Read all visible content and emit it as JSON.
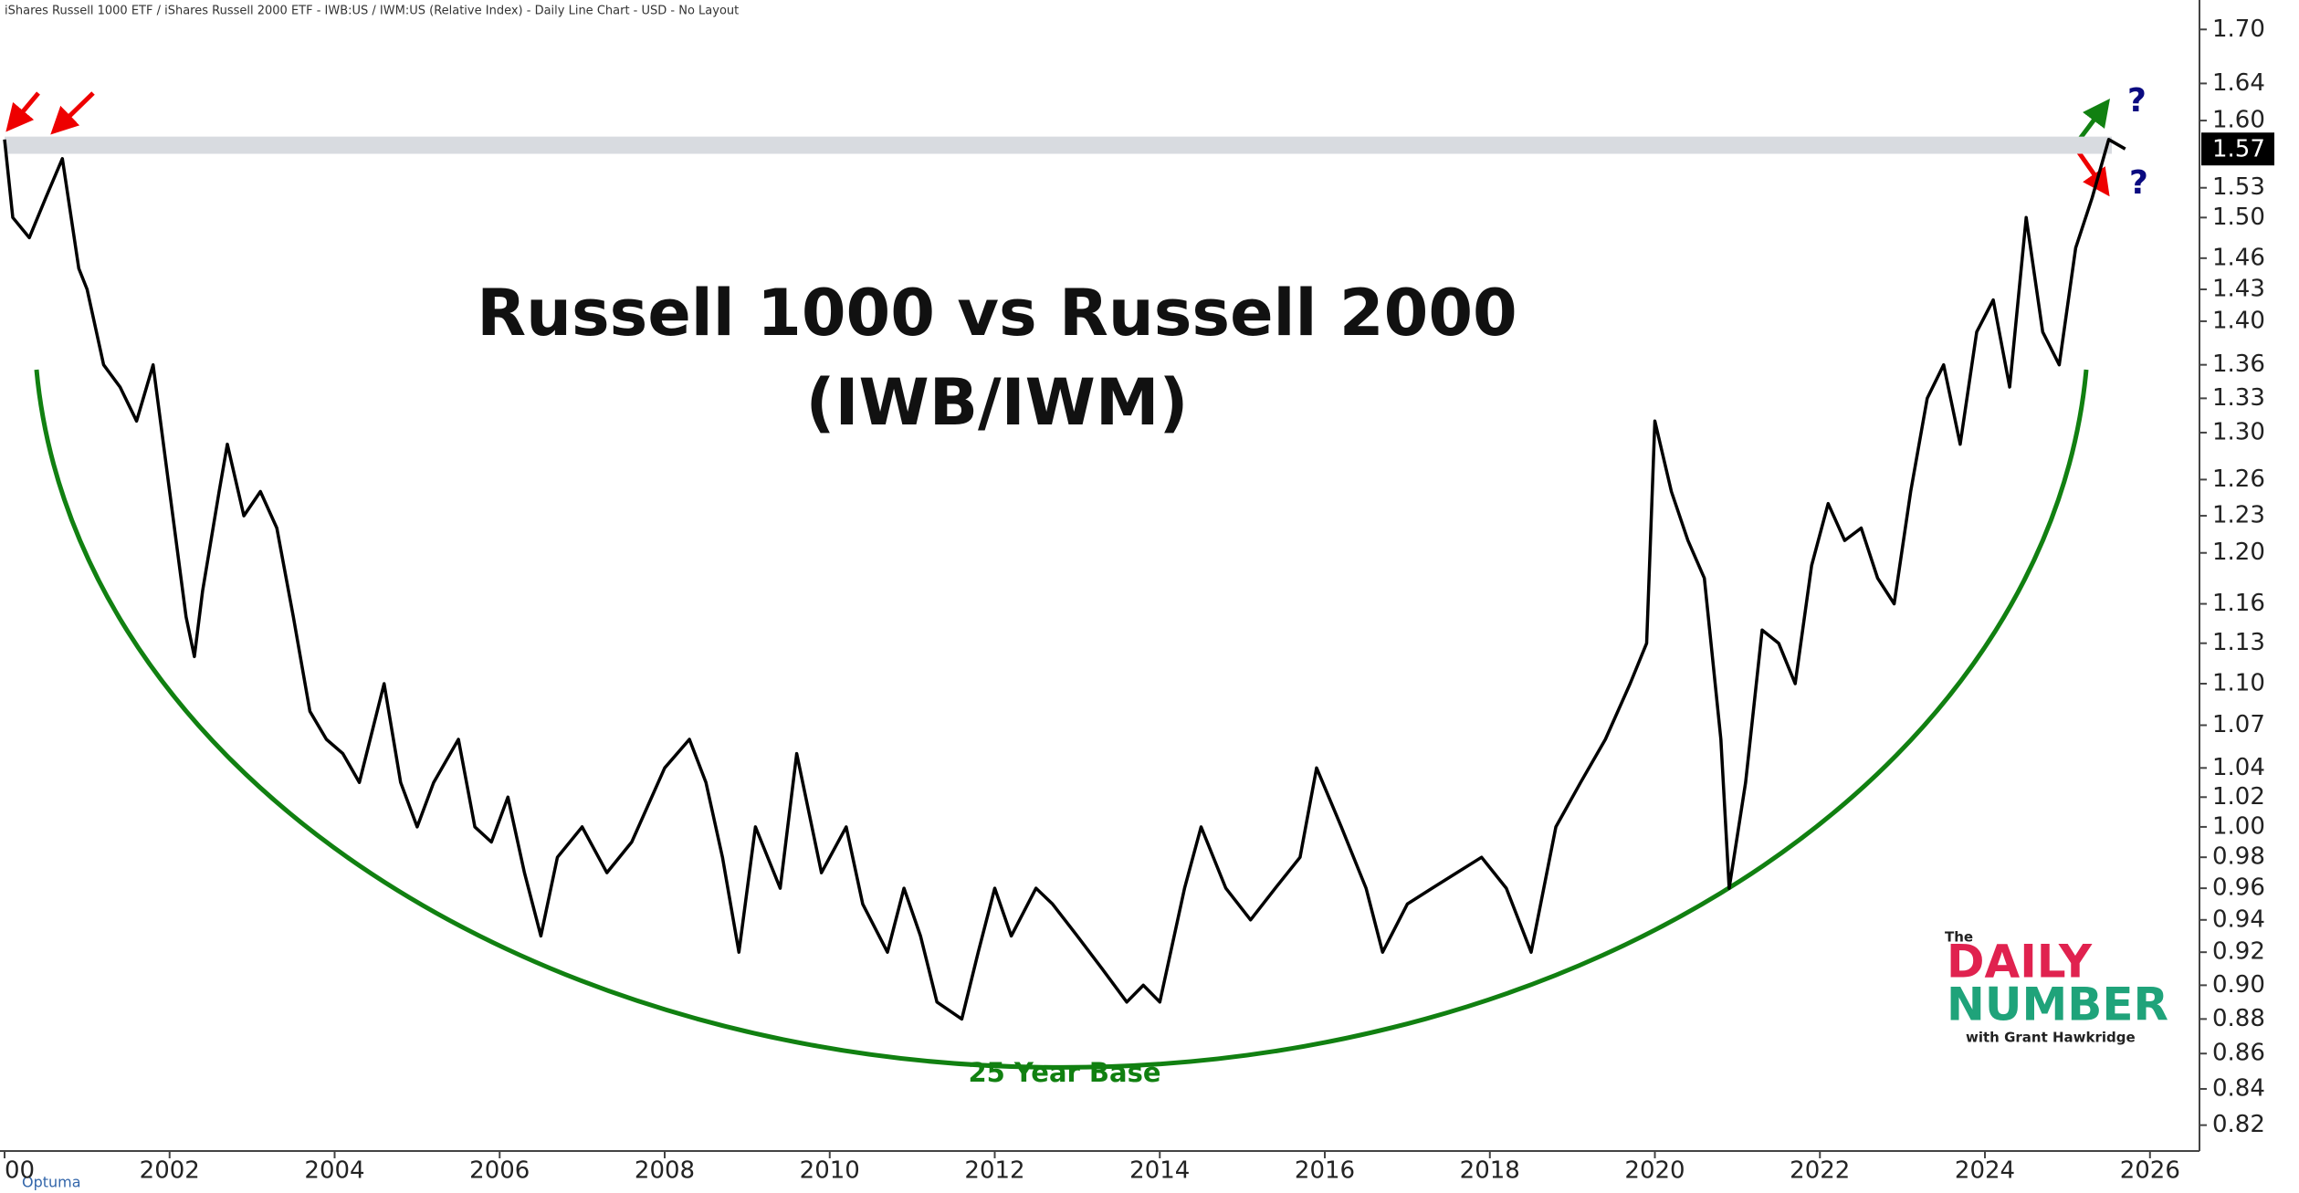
{
  "header": "iShares Russell 1000 ETF / iShares Russell 2000 ETF - IWB:US / IWM:US (Relative Index) - Daily Line Chart - USD - No Layout",
  "chart_data": {
    "type": "line",
    "title": "Russell 1000 vs Russell 2000",
    "subtitle": "(IWB/IWM)",
    "annotation": "25 Year Base",
    "question_marks": [
      "?",
      "?"
    ],
    "color": "#000000",
    "log_scale": true,
    "grid": false,
    "x": [
      2000.0,
      2000.1,
      2000.3,
      2000.5,
      2000.7,
      2000.9,
      2001.0,
      2001.2,
      2001.4,
      2001.6,
      2001.8,
      2002.0,
      2002.2,
      2002.3,
      2002.4,
      2002.6,
      2002.7,
      2002.9,
      2003.1,
      2003.3,
      2003.5,
      2003.7,
      2003.9,
      2004.1,
      2004.3,
      2004.6,
      2004.8,
      2005.0,
      2005.2,
      2005.5,
      2005.7,
      2005.9,
      2006.1,
      2006.3,
      2006.5,
      2006.7,
      2007.0,
      2007.3,
      2007.6,
      2008.0,
      2008.3,
      2008.5,
      2008.7,
      2008.9,
      2009.1,
      2009.4,
      2009.6,
      2009.9,
      2010.2,
      2010.4,
      2010.7,
      2010.9,
      2011.1,
      2011.3,
      2011.6,
      2011.8,
      2012.0,
      2012.2,
      2012.5,
      2012.7,
      2013.0,
      2013.3,
      2013.6,
      2013.8,
      2014.0,
      2014.3,
      2014.5,
      2014.8,
      2015.1,
      2015.4,
      2015.7,
      2015.9,
      2016.2,
      2016.5,
      2016.7,
      2017.0,
      2017.3,
      2017.6,
      2017.9,
      2018.2,
      2018.5,
      2018.8,
      2019.1,
      2019.4,
      2019.7,
      2019.9,
      2020.0,
      2020.2,
      2020.4,
      2020.6,
      2020.8,
      2020.9,
      2021.1,
      2021.3,
      2021.5,
      2021.7,
      2021.9,
      2022.1,
      2022.3,
      2022.5,
      2022.7,
      2022.9,
      2023.1,
      2023.3,
      2023.5,
      2023.7,
      2023.9,
      2024.1,
      2024.3,
      2024.5,
      2024.7,
      2024.9,
      2025.1,
      2025.3,
      2025.5,
      2025.7
    ],
    "values": [
      1.58,
      1.5,
      1.48,
      1.52,
      1.56,
      1.45,
      1.43,
      1.36,
      1.34,
      1.31,
      1.36,
      1.25,
      1.15,
      1.12,
      1.17,
      1.25,
      1.29,
      1.23,
      1.25,
      1.22,
      1.15,
      1.08,
      1.06,
      1.05,
      1.03,
      1.1,
      1.03,
      1.0,
      1.03,
      1.06,
      1.0,
      0.99,
      1.02,
      0.97,
      0.93,
      0.98,
      1.0,
      0.97,
      0.99,
      1.04,
      1.06,
      1.03,
      0.98,
      0.92,
      1.0,
      0.96,
      1.05,
      0.97,
      1.0,
      0.95,
      0.92,
      0.96,
      0.93,
      0.89,
      0.88,
      0.92,
      0.96,
      0.93,
      0.96,
      0.95,
      0.93,
      0.91,
      0.89,
      0.9,
      0.89,
      0.96,
      1.0,
      0.96,
      0.94,
      0.96,
      0.98,
      1.04,
      1.0,
      0.96,
      0.92,
      0.95,
      0.96,
      0.97,
      0.98,
      0.96,
      0.92,
      1.0,
      1.03,
      1.06,
      1.1,
      1.13,
      1.31,
      1.25,
      1.21,
      1.18,
      1.06,
      0.96,
      1.03,
      1.14,
      1.13,
      1.1,
      1.19,
      1.24,
      1.21,
      1.22,
      1.18,
      1.16,
      1.25,
      1.33,
      1.36,
      1.29,
      1.39,
      1.42,
      1.34,
      1.5,
      1.39,
      1.36,
      1.47,
      1.52,
      1.58,
      1.57
    ],
    "last_value": 1.57,
    "resistance_band": [
      1.565,
      1.583
    ],
    "xlim": [
      2000,
      2026.6
    ],
    "xticks": [
      {
        "value": 2000,
        "label": "00"
      },
      2002,
      2004,
      2006,
      2008,
      2010,
      2012,
      2014,
      2016,
      2018,
      2020,
      2022,
      2024,
      2026
    ],
    "ylim": [
      0.806,
      1.72
    ],
    "yticks": [
      0.82,
      0.84,
      0.86,
      0.88,
      {
        "value": 0.9,
        "label": "0.90"
      },
      0.92,
      0.94,
      0.96,
      0.98,
      {
        "value": 1,
        "label": "1.00"
      },
      1.02,
      1.04,
      1.07,
      {
        "value": 1.1,
        "label": "1.10"
      },
      1.13,
      1.16,
      {
        "value": 1.2,
        "label": "1.20"
      },
      1.23,
      1.26,
      {
        "value": 1.3,
        "label": "1.30"
      },
      1.33,
      1.36,
      {
        "value": 1.4,
        "label": "1.40"
      },
      1.43,
      1.46,
      {
        "value": 1.5,
        "label": "1.50"
      },
      1.53,
      {
        "value": 1.6,
        "label": "1.60"
      },
      1.64,
      {
        "value": 1.7,
        "label": "1.70"
      }
    ]
  },
  "logo": {
    "the": "The",
    "daily": "DAILY",
    "number": "NUMBER",
    "byline": "with Grant Hawkridge"
  },
  "footer": "Optuma"
}
